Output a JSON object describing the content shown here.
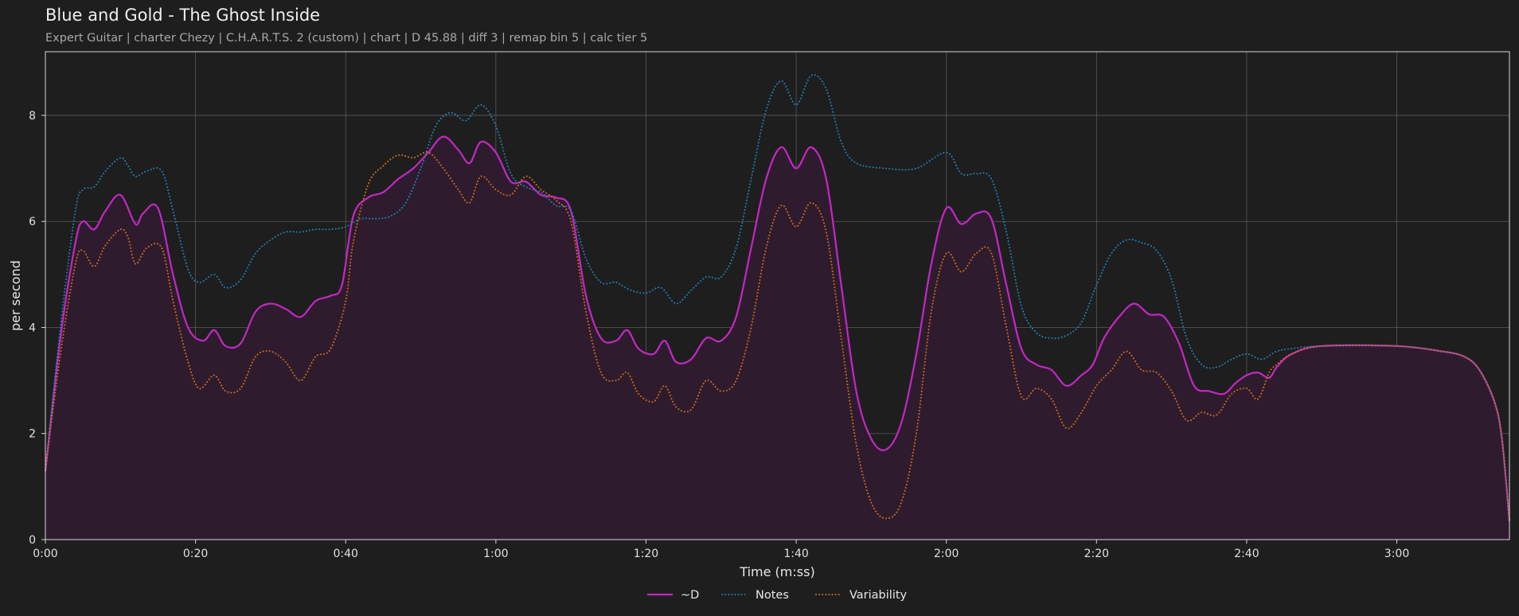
{
  "header": {
    "title": "Blue and Gold - The Ghost Inside",
    "subtitle": "Expert Guitar  |  charter Chezy  |  C.H.A.R.T.S. 2 (custom)  |  chart  |  D 45.88  |  diff 3  |  remap bin 5  |  calc tier 5"
  },
  "chart_data": {
    "type": "line",
    "xlabel": "Time (m:ss)",
    "ylabel": "per second",
    "xlim": [
      0,
      195
    ],
    "ylim": [
      0,
      9.2
    ],
    "x_ticks": [
      {
        "value": 0,
        "label": "0:00"
      },
      {
        "value": 20,
        "label": "0:20"
      },
      {
        "value": 40,
        "label": "0:40"
      },
      {
        "value": 60,
        "label": "1:00"
      },
      {
        "value": 80,
        "label": "1:20"
      },
      {
        "value": 100,
        "label": "1:40"
      },
      {
        "value": 120,
        "label": "2:00"
      },
      {
        "value": 140,
        "label": "2:20"
      },
      {
        "value": 160,
        "label": "2:40"
      },
      {
        "value": 180,
        "label": "3:00"
      }
    ],
    "y_ticks": [
      0,
      2,
      4,
      6,
      8
    ],
    "grid": true,
    "legend_position": "bottom-center",
    "background": "#1e1e1e",
    "fill_color": "#2e1c2e",
    "series": [
      {
        "name": "~D",
        "color": "#c427c4",
        "style": "solid",
        "filled": true,
        "points": [
          [
            0,
            1.3
          ],
          [
            2,
            3.8
          ],
          [
            4,
            5.6
          ],
          [
            5,
            6.0
          ],
          [
            6.5,
            5.85
          ],
          [
            8,
            6.2
          ],
          [
            10,
            6.5
          ],
          [
            12,
            5.95
          ],
          [
            13,
            6.15
          ],
          [
            15,
            6.25
          ],
          [
            17,
            5.0
          ],
          [
            19,
            4.0
          ],
          [
            21,
            3.75
          ],
          [
            22.5,
            3.95
          ],
          [
            24,
            3.65
          ],
          [
            26,
            3.7
          ],
          [
            28,
            4.3
          ],
          [
            30,
            4.45
          ],
          [
            32,
            4.35
          ],
          [
            34,
            4.2
          ],
          [
            36,
            4.5
          ],
          [
            38,
            4.6
          ],
          [
            39.5,
            4.8
          ],
          [
            41,
            6.1
          ],
          [
            43,
            6.45
          ],
          [
            45,
            6.55
          ],
          [
            47,
            6.8
          ],
          [
            49,
            7.0
          ],
          [
            51,
            7.3
          ],
          [
            53,
            7.6
          ],
          [
            55,
            7.35
          ],
          [
            56.5,
            7.1
          ],
          [
            58,
            7.5
          ],
          [
            60,
            7.3
          ],
          [
            62,
            6.75
          ],
          [
            64,
            6.75
          ],
          [
            66,
            6.5
          ],
          [
            68,
            6.45
          ],
          [
            70,
            6.2
          ],
          [
            72,
            4.6
          ],
          [
            74,
            3.8
          ],
          [
            76,
            3.75
          ],
          [
            77.5,
            3.95
          ],
          [
            79,
            3.6
          ],
          [
            81,
            3.5
          ],
          [
            82.5,
            3.75
          ],
          [
            84,
            3.35
          ],
          [
            86,
            3.4
          ],
          [
            88,
            3.8
          ],
          [
            90,
            3.75
          ],
          [
            92,
            4.2
          ],
          [
            94,
            5.5
          ],
          [
            96,
            6.8
          ],
          [
            98,
            7.4
          ],
          [
            100,
            7.0
          ],
          [
            102,
            7.4
          ],
          [
            104,
            6.8
          ],
          [
            106,
            4.8
          ],
          [
            108,
            2.8
          ],
          [
            110,
            1.9
          ],
          [
            112,
            1.7
          ],
          [
            114,
            2.2
          ],
          [
            116,
            3.5
          ],
          [
            118,
            5.2
          ],
          [
            120,
            6.25
          ],
          [
            122,
            5.95
          ],
          [
            124,
            6.15
          ],
          [
            126,
            6.05
          ],
          [
            128,
            4.8
          ],
          [
            130,
            3.6
          ],
          [
            132,
            3.3
          ],
          [
            134,
            3.2
          ],
          [
            136,
            2.9
          ],
          [
            138,
            3.1
          ],
          [
            139.5,
            3.3
          ],
          [
            141,
            3.8
          ],
          [
            143,
            4.2
          ],
          [
            145,
            4.45
          ],
          [
            147,
            4.25
          ],
          [
            149,
            4.2
          ],
          [
            151,
            3.7
          ],
          [
            153,
            2.9
          ],
          [
            155,
            2.8
          ],
          [
            157,
            2.75
          ],
          [
            158.5,
            2.95
          ],
          [
            160,
            3.1
          ],
          [
            161.5,
            3.15
          ],
          [
            163,
            3.05
          ],
          [
            164,
            3.25
          ],
          [
            166,
            3.5
          ],
          [
            170,
            3.65
          ],
          [
            180,
            3.65
          ],
          [
            186,
            3.55
          ],
          [
            189,
            3.45
          ],
          [
            191,
            3.2
          ],
          [
            193,
            2.6
          ],
          [
            194,
            1.9
          ],
          [
            195,
            0.35
          ]
        ]
      },
      {
        "name": "Notes",
        "color": "#1f7fb6",
        "style": "dotted",
        "filled": false,
        "points": [
          [
            0,
            1.3
          ],
          [
            2,
            4.0
          ],
          [
            4,
            6.2
          ],
          [
            5,
            6.6
          ],
          [
            6.5,
            6.65
          ],
          [
            8,
            6.95
          ],
          [
            10,
            7.2
          ],
          [
            11,
            7.05
          ],
          [
            12,
            6.85
          ],
          [
            13.5,
            6.95
          ],
          [
            15.5,
            6.95
          ],
          [
            17,
            6.2
          ],
          [
            19,
            5.1
          ],
          [
            20.5,
            4.85
          ],
          [
            22.5,
            5.0
          ],
          [
            24,
            4.75
          ],
          [
            26,
            4.9
          ],
          [
            28,
            5.4
          ],
          [
            30,
            5.65
          ],
          [
            32,
            5.8
          ],
          [
            34,
            5.8
          ],
          [
            36,
            5.85
          ],
          [
            38,
            5.85
          ],
          [
            40,
            5.9
          ],
          [
            42,
            6.05
          ],
          [
            44,
            6.05
          ],
          [
            46,
            6.1
          ],
          [
            48,
            6.35
          ],
          [
            50,
            7.0
          ],
          [
            52,
            7.8
          ],
          [
            54,
            8.05
          ],
          [
            56,
            7.9
          ],
          [
            58,
            8.2
          ],
          [
            60,
            7.8
          ],
          [
            62,
            6.9
          ],
          [
            64,
            6.65
          ],
          [
            66,
            6.55
          ],
          [
            68,
            6.3
          ],
          [
            70,
            6.2
          ],
          [
            72,
            5.3
          ],
          [
            74,
            4.85
          ],
          [
            76,
            4.85
          ],
          [
            78,
            4.7
          ],
          [
            80,
            4.65
          ],
          [
            82,
            4.75
          ],
          [
            84,
            4.45
          ],
          [
            86,
            4.7
          ],
          [
            88,
            4.95
          ],
          [
            90,
            4.95
          ],
          [
            92,
            5.5
          ],
          [
            94,
            6.8
          ],
          [
            96,
            8.1
          ],
          [
            98,
            8.65
          ],
          [
            100,
            8.2
          ],
          [
            102,
            8.75
          ],
          [
            104,
            8.5
          ],
          [
            106,
            7.5
          ],
          [
            108,
            7.1
          ],
          [
            112,
            7.0
          ],
          [
            116,
            7.0
          ],
          [
            120,
            7.3
          ],
          [
            122,
            6.9
          ],
          [
            124,
            6.9
          ],
          [
            126,
            6.8
          ],
          [
            128,
            5.8
          ],
          [
            130,
            4.4
          ],
          [
            132,
            3.9
          ],
          [
            134,
            3.8
          ],
          [
            136,
            3.85
          ],
          [
            138,
            4.1
          ],
          [
            140,
            4.8
          ],
          [
            142,
            5.4
          ],
          [
            144,
            5.65
          ],
          [
            146,
            5.6
          ],
          [
            148,
            5.45
          ],
          [
            150,
            4.9
          ],
          [
            152,
            3.8
          ],
          [
            154,
            3.3
          ],
          [
            156,
            3.25
          ],
          [
            158,
            3.4
          ],
          [
            160,
            3.5
          ],
          [
            162,
            3.4
          ],
          [
            164,
            3.55
          ],
          [
            166,
            3.6
          ],
          [
            170,
            3.65
          ],
          [
            180,
            3.65
          ],
          [
            186,
            3.55
          ],
          [
            189,
            3.45
          ],
          [
            191,
            3.2
          ],
          [
            193,
            2.6
          ],
          [
            194,
            1.9
          ],
          [
            195,
            0.35
          ]
        ]
      },
      {
        "name": "Variability",
        "color": "#d16a19",
        "style": "dotted",
        "filled": false,
        "points": [
          [
            0,
            1.3
          ],
          [
            2,
            3.5
          ],
          [
            4,
            5.2
          ],
          [
            5,
            5.45
          ],
          [
            6.5,
            5.15
          ],
          [
            8,
            5.55
          ],
          [
            10,
            5.85
          ],
          [
            11,
            5.7
          ],
          [
            12,
            5.2
          ],
          [
            13.5,
            5.5
          ],
          [
            15.5,
            5.5
          ],
          [
            17,
            4.5
          ],
          [
            19,
            3.35
          ],
          [
            20.5,
            2.85
          ],
          [
            22.5,
            3.1
          ],
          [
            24,
            2.8
          ],
          [
            26,
            2.85
          ],
          [
            28,
            3.45
          ],
          [
            30,
            3.55
          ],
          [
            32,
            3.35
          ],
          [
            34,
            3.0
          ],
          [
            36,
            3.45
          ],
          [
            38,
            3.6
          ],
          [
            40,
            4.5
          ],
          [
            41,
            5.6
          ],
          [
            43,
            6.7
          ],
          [
            45,
            7.05
          ],
          [
            47,
            7.25
          ],
          [
            49,
            7.2
          ],
          [
            51,
            7.3
          ],
          [
            53,
            7.0
          ],
          [
            55,
            6.6
          ],
          [
            56.5,
            6.35
          ],
          [
            58,
            6.85
          ],
          [
            60,
            6.6
          ],
          [
            62,
            6.5
          ],
          [
            64,
            6.85
          ],
          [
            66,
            6.6
          ],
          [
            68,
            6.4
          ],
          [
            70,
            6.0
          ],
          [
            72,
            4.3
          ],
          [
            74,
            3.15
          ],
          [
            76,
            3.0
          ],
          [
            77.5,
            3.15
          ],
          [
            79,
            2.75
          ],
          [
            81,
            2.6
          ],
          [
            82.5,
            2.9
          ],
          [
            84,
            2.5
          ],
          [
            86,
            2.45
          ],
          [
            88,
            3.0
          ],
          [
            90,
            2.8
          ],
          [
            92,
            3.0
          ],
          [
            94,
            4.0
          ],
          [
            96,
            5.5
          ],
          [
            98,
            6.3
          ],
          [
            100,
            5.9
          ],
          [
            102,
            6.35
          ],
          [
            104,
            5.8
          ],
          [
            106,
            3.8
          ],
          [
            108,
            1.8
          ],
          [
            110,
            0.7
          ],
          [
            112,
            0.4
          ],
          [
            114,
            0.7
          ],
          [
            116,
            2.0
          ],
          [
            118,
            4.3
          ],
          [
            120,
            5.4
          ],
          [
            122,
            5.05
          ],
          [
            124,
            5.4
          ],
          [
            126,
            5.4
          ],
          [
            128,
            4.0
          ],
          [
            130,
            2.7
          ],
          [
            132,
            2.85
          ],
          [
            134,
            2.65
          ],
          [
            136,
            2.1
          ],
          [
            138,
            2.4
          ],
          [
            140,
            2.9
          ],
          [
            142,
            3.2
          ],
          [
            144,
            3.55
          ],
          [
            146,
            3.2
          ],
          [
            148,
            3.15
          ],
          [
            150,
            2.8
          ],
          [
            152,
            2.25
          ],
          [
            154,
            2.4
          ],
          [
            156,
            2.35
          ],
          [
            158,
            2.75
          ],
          [
            160,
            2.85
          ],
          [
            161.5,
            2.65
          ],
          [
            163,
            3.15
          ],
          [
            164,
            3.3
          ],
          [
            166,
            3.5
          ],
          [
            170,
            3.65
          ],
          [
            180,
            3.65
          ],
          [
            186,
            3.55
          ],
          [
            189,
            3.45
          ],
          [
            191,
            3.2
          ],
          [
            193,
            2.6
          ],
          [
            194,
            1.9
          ],
          [
            195,
            0.35
          ]
        ]
      }
    ]
  }
}
